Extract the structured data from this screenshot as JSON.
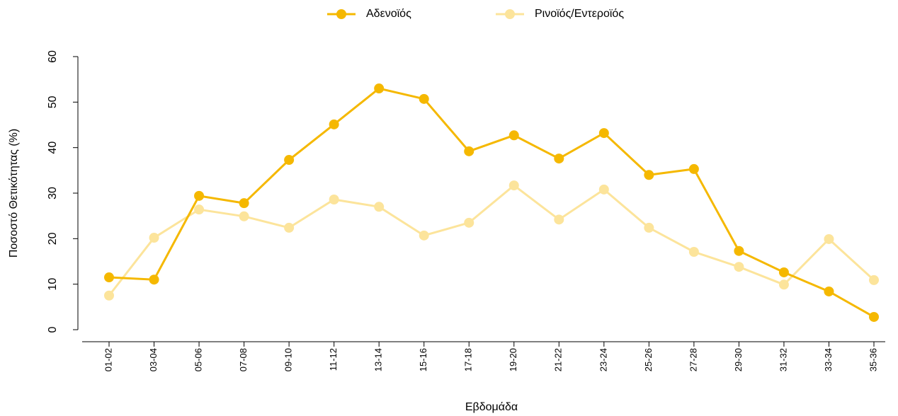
{
  "chart_data": {
    "type": "line",
    "x_label": "Εβδομάδα",
    "y_label": "Ποσοστό Θετικότητας (%)",
    "categories": [
      "01-02",
      "03-04",
      "05-06",
      "07-08",
      "09-10",
      "11-12",
      "13-14",
      "15-16",
      "17-18",
      "19-20",
      "21-22",
      "23-24",
      "25-26",
      "27-28",
      "29-30",
      "31-32",
      "33-34",
      "35-36"
    ],
    "series": [
      {
        "name": "Αδενοϊός",
        "color": "#f5b800",
        "values": [
          11.5,
          11,
          29.4,
          27.8,
          37.3,
          45.1,
          53,
          50.7,
          39.2,
          42.7,
          37.6,
          43.2,
          34,
          35.3,
          17.3,
          12.6,
          8.4,
          2.8
        ]
      },
      {
        "name": "Ρινοϊός/Εντεροϊός",
        "color": "#fce49b",
        "values": [
          7.5,
          20.2,
          26.4,
          24.9,
          22.4,
          28.6,
          27,
          20.7,
          23.5,
          31.7,
          24.2,
          30.8,
          22.4,
          17.1,
          13.8,
          9.9,
          19.9,
          10.9
        ]
      }
    ],
    "ylim": [
      0,
      60
    ],
    "yticks": [
      0,
      10,
      20,
      30,
      40,
      50,
      60
    ],
    "grid": false,
    "legend": "top"
  }
}
